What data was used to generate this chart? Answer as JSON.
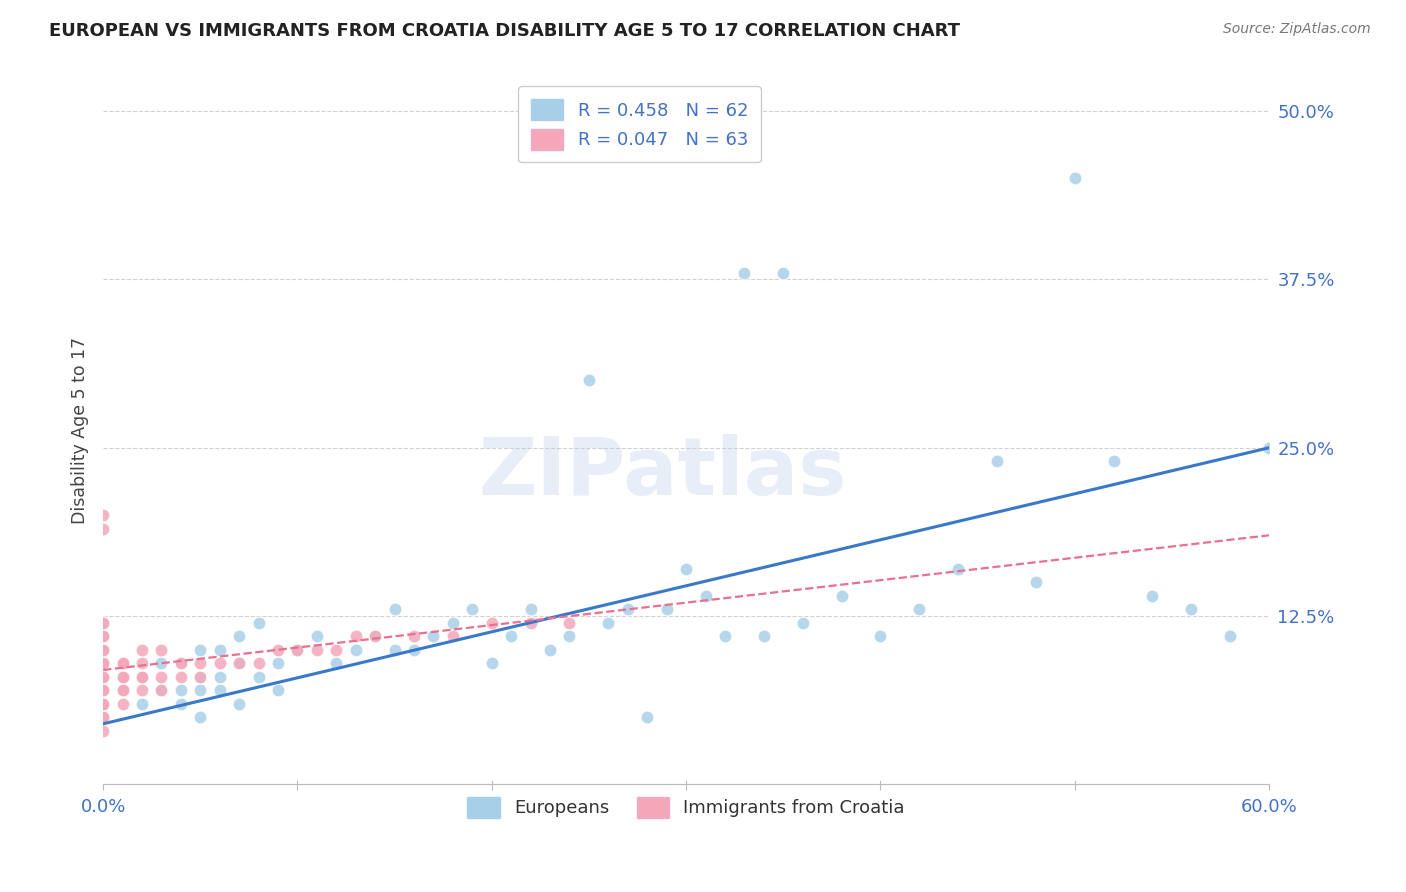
{
  "title": "EUROPEAN VS IMMIGRANTS FROM CROATIA DISABILITY AGE 5 TO 17 CORRELATION CHART",
  "source": "Source: ZipAtlas.com",
  "ylabel": "Disability Age 5 to 17",
  "xlim": [
    0.0,
    0.6
  ],
  "ylim": [
    0.0,
    0.525
  ],
  "xticks": [
    0.0,
    0.1,
    0.2,
    0.3,
    0.4,
    0.5,
    0.6
  ],
  "xticklabels": [
    "0.0%",
    "",
    "",
    "",
    "",
    "",
    "60.0%"
  ],
  "ytick_positions": [
    0.0,
    0.125,
    0.25,
    0.375,
    0.5
  ],
  "ytick_labels": [
    "",
    "12.5%",
    "25.0%",
    "37.5%",
    "50.0%"
  ],
  "watermark": "ZIPatlas",
  "blue_color": "#a8cfe8",
  "pink_color": "#f4a7b9",
  "blue_line_color": "#3a78c9",
  "pink_line_color": "#e87090",
  "title_color": "#222222",
  "axis_label_color": "#4472C4",
  "grid_color": "#cccccc",
  "legend_blue_text": "R = 0.458   N = 62",
  "legend_pink_text": "R = 0.047   N = 63",
  "eu_x": [
    0.01,
    0.02,
    0.02,
    0.03,
    0.03,
    0.04,
    0.04,
    0.04,
    0.05,
    0.05,
    0.05,
    0.05,
    0.06,
    0.06,
    0.06,
    0.07,
    0.07,
    0.07,
    0.08,
    0.08,
    0.09,
    0.09,
    0.1,
    0.11,
    0.12,
    0.13,
    0.14,
    0.15,
    0.15,
    0.16,
    0.17,
    0.18,
    0.19,
    0.2,
    0.21,
    0.22,
    0.23,
    0.24,
    0.25,
    0.26,
    0.27,
    0.28,
    0.29,
    0.3,
    0.31,
    0.32,
    0.33,
    0.34,
    0.35,
    0.36,
    0.38,
    0.4,
    0.42,
    0.44,
    0.46,
    0.48,
    0.5,
    0.52,
    0.54,
    0.56,
    0.58,
    0.6
  ],
  "eu_y": [
    0.07,
    0.06,
    0.08,
    0.07,
    0.09,
    0.06,
    0.07,
    0.09,
    0.05,
    0.07,
    0.08,
    0.1,
    0.07,
    0.08,
    0.1,
    0.06,
    0.09,
    0.11,
    0.08,
    0.12,
    0.07,
    0.09,
    0.1,
    0.11,
    0.09,
    0.1,
    0.11,
    0.1,
    0.13,
    0.1,
    0.11,
    0.12,
    0.13,
    0.09,
    0.11,
    0.13,
    0.1,
    0.11,
    0.3,
    0.12,
    0.13,
    0.05,
    0.13,
    0.16,
    0.14,
    0.11,
    0.38,
    0.11,
    0.38,
    0.12,
    0.14,
    0.11,
    0.13,
    0.16,
    0.24,
    0.15,
    0.45,
    0.24,
    0.14,
    0.13,
    0.11,
    0.25
  ],
  "cr_x": [
    0.0,
    0.0,
    0.0,
    0.0,
    0.0,
    0.0,
    0.0,
    0.0,
    0.0,
    0.0,
    0.0,
    0.0,
    0.0,
    0.0,
    0.0,
    0.0,
    0.0,
    0.0,
    0.0,
    0.0,
    0.0,
    0.0,
    0.0,
    0.0,
    0.0,
    0.0,
    0.0,
    0.0,
    0.0,
    0.0,
    0.01,
    0.01,
    0.01,
    0.01,
    0.01,
    0.01,
    0.01,
    0.02,
    0.02,
    0.02,
    0.02,
    0.02,
    0.03,
    0.03,
    0.03,
    0.04,
    0.04,
    0.05,
    0.05,
    0.06,
    0.07,
    0.08,
    0.09,
    0.1,
    0.11,
    0.12,
    0.13,
    0.14,
    0.16,
    0.18,
    0.2,
    0.22,
    0.24
  ],
  "cr_y": [
    0.04,
    0.05,
    0.05,
    0.06,
    0.06,
    0.06,
    0.07,
    0.07,
    0.07,
    0.07,
    0.08,
    0.08,
    0.08,
    0.09,
    0.09,
    0.09,
    0.09,
    0.09,
    0.1,
    0.1,
    0.1,
    0.1,
    0.1,
    0.11,
    0.11,
    0.11,
    0.12,
    0.12,
    0.19,
    0.2,
    0.06,
    0.07,
    0.07,
    0.08,
    0.08,
    0.09,
    0.09,
    0.07,
    0.08,
    0.08,
    0.09,
    0.1,
    0.07,
    0.08,
    0.1,
    0.08,
    0.09,
    0.08,
    0.09,
    0.09,
    0.09,
    0.09,
    0.1,
    0.1,
    0.1,
    0.1,
    0.11,
    0.11,
    0.11,
    0.11,
    0.12,
    0.12,
    0.12
  ],
  "eu_line_x": [
    0.0,
    0.6
  ],
  "eu_line_y": [
    0.045,
    0.25
  ],
  "cr_line_x": [
    0.0,
    0.6
  ],
  "cr_line_y": [
    0.085,
    0.185
  ]
}
